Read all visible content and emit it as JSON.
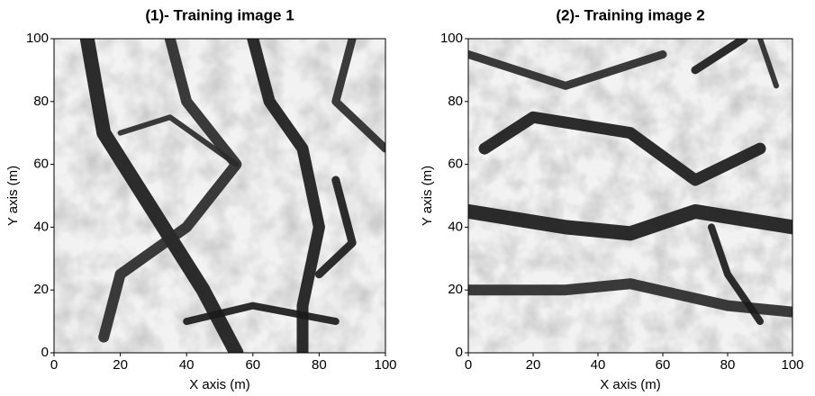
{
  "chart_data": [
    {
      "type": "image",
      "title": "(1)- Training image 1",
      "xlabel": "X axis (m)",
      "ylabel": "Y axis (m)",
      "xlim": [
        0,
        100
      ],
      "ylim": [
        0,
        100
      ],
      "xticks": [
        0,
        20,
        40,
        60,
        80,
        100
      ],
      "yticks": [
        0,
        20,
        40,
        60,
        80,
        100
      ]
    },
    {
      "type": "image",
      "title": "(2)- Training image 2",
      "xlabel": "X axis (m)",
      "ylabel": "Y axis (m)",
      "xlim": [
        0,
        100
      ],
      "ylim": [
        0,
        100
      ],
      "xticks": [
        0,
        20,
        40,
        60,
        80,
        100
      ],
      "yticks": [
        0,
        20,
        40,
        60,
        80,
        100
      ]
    }
  ]
}
